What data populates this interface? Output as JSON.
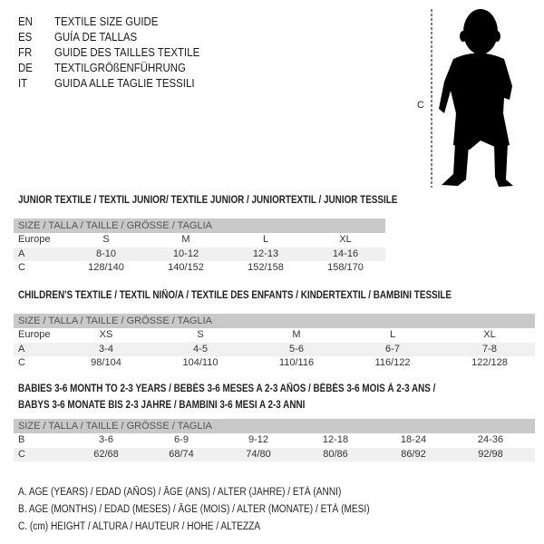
{
  "languages": [
    {
      "code": "EN",
      "title": "TEXTILE SIZE GUIDE"
    },
    {
      "code": "ES",
      "title": "GUÍA DE TALLAS"
    },
    {
      "code": "FR",
      "title": "GUIDE DES TAILLES TEXTILE"
    },
    {
      "code": "DE",
      "title": "TEXTILGRÖßENFÜHRUNG"
    },
    {
      "code": "IT",
      "title": "GUIDA ALLE TAGLIE TESSILI"
    }
  ],
  "figure": {
    "measure_label": "C"
  },
  "size_header": "SIZE / TALLA / TAILLE / GRÖSSE / TAGLIA",
  "tables": [
    {
      "title": "JUNIOR TEXTILE / TEXTIL JUNIOR/ TEXTILE JUNIOR / JUNIORTEXTIL / JUNIOR TESSILE",
      "rows": [
        {
          "label": "Europe",
          "values": [
            "S",
            "M",
            "L",
            "XL"
          ]
        },
        {
          "label": "A",
          "values": [
            "8-10",
            "10-12",
            "12-13",
            "14-16"
          ]
        },
        {
          "label": "C",
          "values": [
            "128/140",
            "140/152",
            "152/158",
            "158/170"
          ]
        }
      ]
    },
    {
      "title": "CHILDREN'S TEXTILE / TEXTIL NIÑO/A / TEXTILE DES ENFANTS / KINDERTEXTIL / BAMBINI TESSILE",
      "rows": [
        {
          "label": "Europe",
          "values": [
            "XS",
            "S",
            "M",
            "L",
            "XL"
          ]
        },
        {
          "label": "A",
          "values": [
            "3-4",
            "4-5",
            "5-6",
            "6-7",
            "7-8"
          ]
        },
        {
          "label": "C",
          "values": [
            "98/104",
            "104/110",
            "110/116",
            "116/122",
            "122/128"
          ]
        }
      ]
    },
    {
      "title": "BABIES 3-6 MONTH TO 2-3 YEARS / BEBÉS 3-6 MESES A 2-3 AÑOS / BÉBÉS 3-6 MOIS À 2-3 ANS /",
      "title2": "BABYS 3-6 MONATE BIS 2-3 JAHRE / BAMBINI 3-6 MESI A 2-3 ANNI",
      "rows": [
        {
          "label": "B",
          "values": [
            "3-6",
            "6-9",
            "9-12",
            "12-18",
            "18-24",
            "24-36"
          ]
        },
        {
          "label": "C",
          "values": [
            "62/68",
            "68/74",
            "74/80",
            "80/86",
            "86/92",
            "92/98"
          ]
        }
      ]
    }
  ],
  "legend": [
    "A. AGE (YEARS) / EDAD (AÑOS) / ÂGE (ANS) / ALTER (JAHRE) / ETÀ (ANNI)",
    "B. AGE (MONTHS) / EDAD (MESES) / ÂGE (MOIS) / ALTER (MONATE) / ETÀ (MESI)",
    "C. (cm) HEIGHT / ALTURA / HAUTEUR / HÖHE / ALTEZZA"
  ]
}
